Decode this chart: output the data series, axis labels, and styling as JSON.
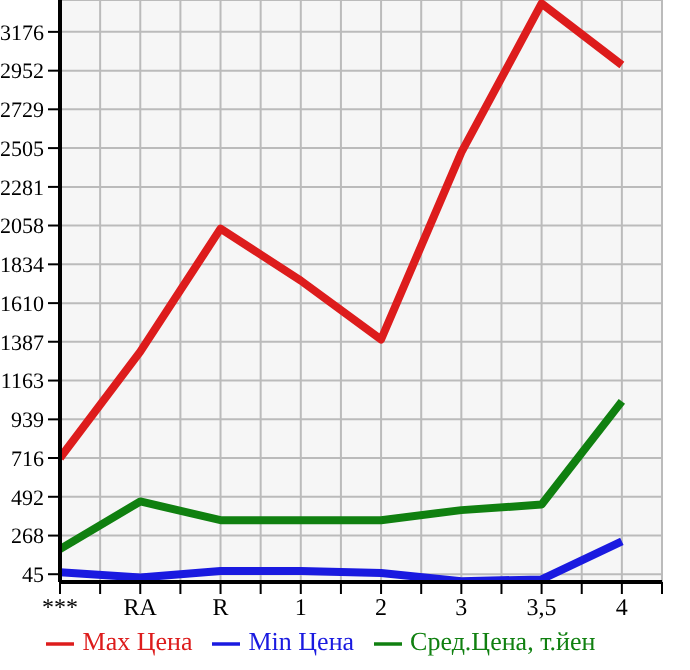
{
  "chart_data": {
    "type": "line",
    "categories": [
      "***",
      "RA",
      "R",
      "1",
      "2",
      "3",
      "3,5",
      "4"
    ],
    "series": [
      {
        "name": "Max Цена",
        "color": "#dd1c1c",
        "values": [
          716,
          1330,
          2040,
          1740,
          1400,
          2480,
          3340,
          2985
        ]
      },
      {
        "name": "Min Цена",
        "color": "#1a1ae0",
        "values": [
          56,
          26,
          64,
          64,
          52,
          5,
          15,
          235
        ]
      },
      {
        "name": "Сред.Цена, т.йен",
        "color": "#108010",
        "values": [
          190,
          465,
          357,
          357,
          357,
          415,
          447,
          1043
        ]
      }
    ],
    "ylim": [
      0,
      3360
    ],
    "yticks": [
      45,
      268,
      492,
      716,
      939,
      1163,
      1387,
      1610,
      1834,
      2058,
      2281,
      2505,
      2729,
      2952,
      3176
    ],
    "grid": true,
    "legend": "bottom",
    "marker": "none",
    "line_style": "solid"
  }
}
